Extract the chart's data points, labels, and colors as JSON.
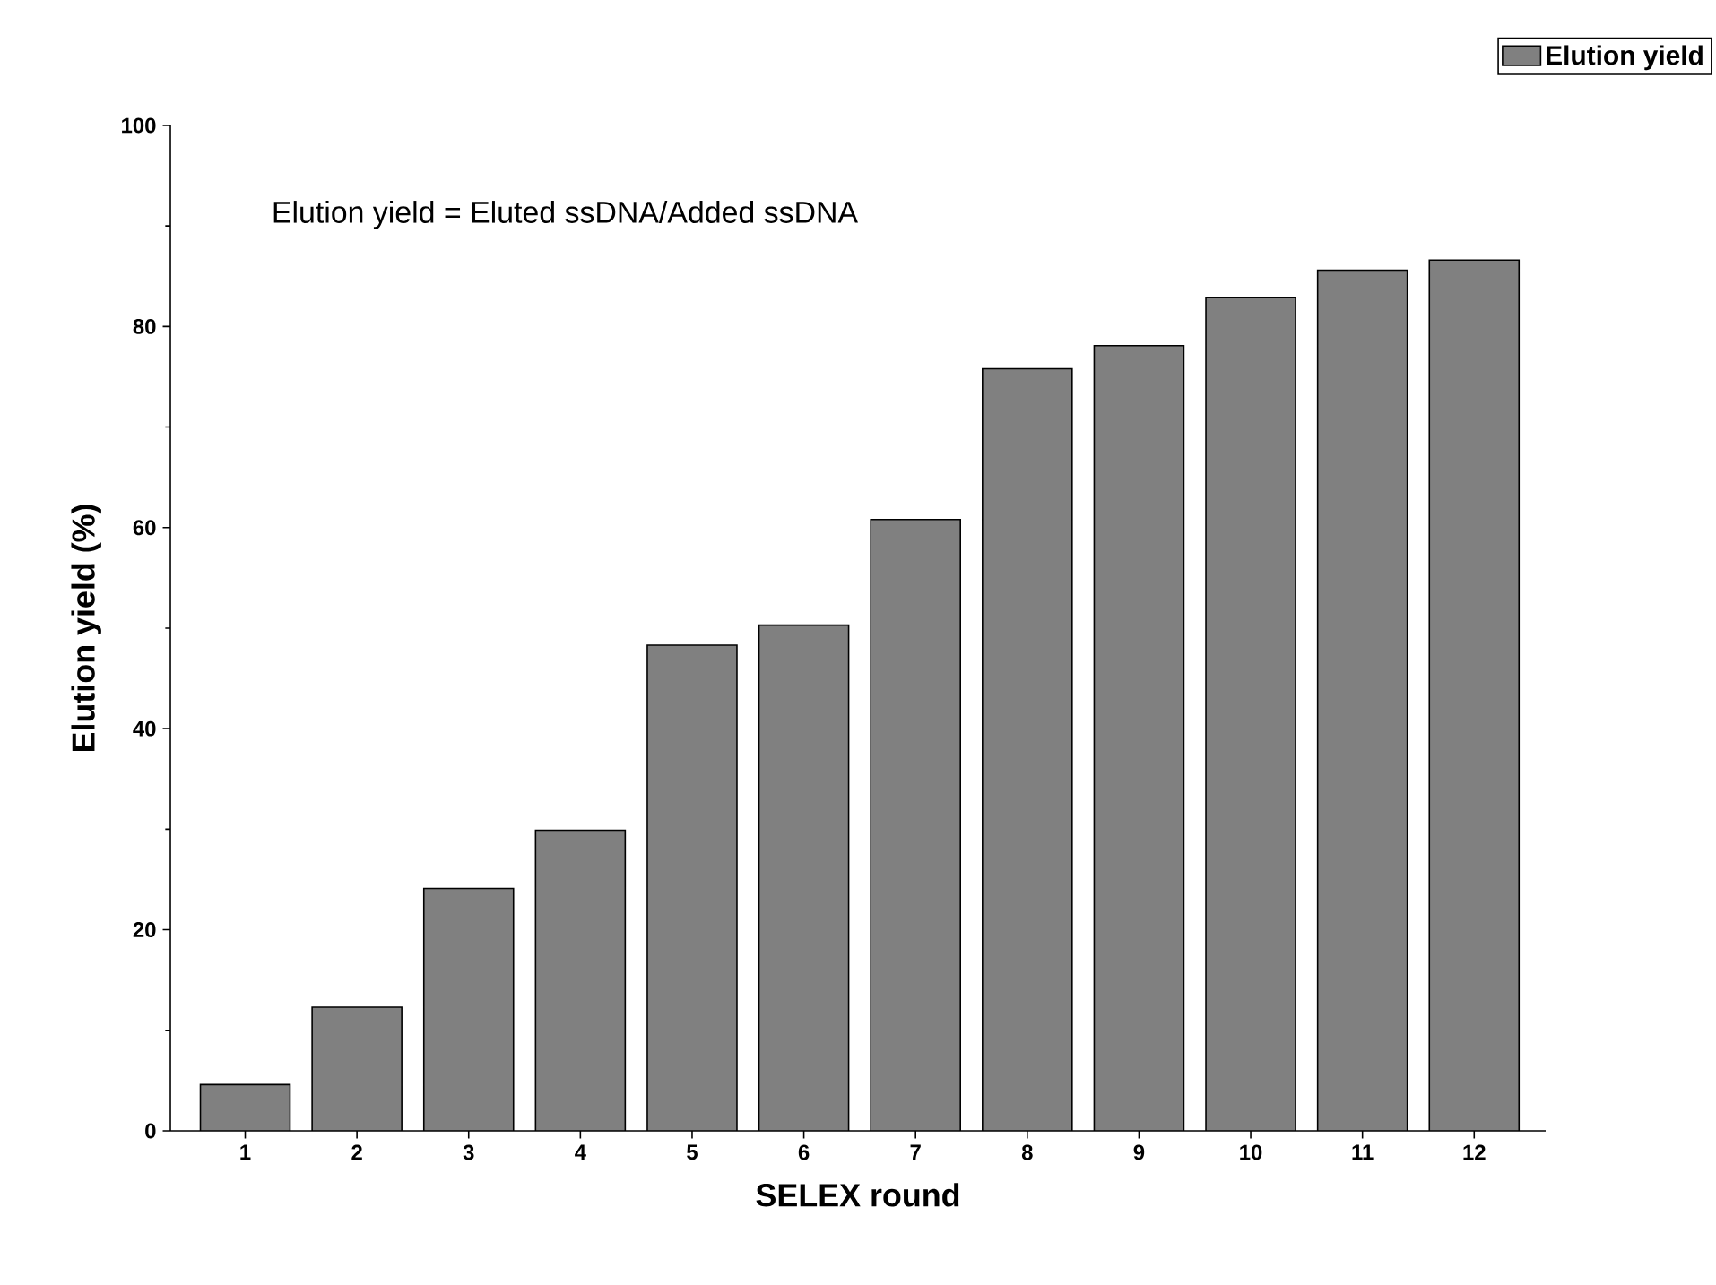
{
  "chart_data": {
    "type": "bar",
    "xlabel": "SELEX round",
    "ylabel": "Elution yield (%)",
    "categories": [
      "1",
      "2",
      "3",
      "4",
      "5",
      "6",
      "7",
      "8",
      "9",
      "10",
      "11",
      "12"
    ],
    "series": [
      {
        "name": "Elution yield",
        "color": "#808080",
        "values": [
          4.6,
          12.3,
          24.1,
          29.9,
          48.3,
          50.3,
          60.8,
          75.8,
          78.1,
          82.9,
          85.6,
          86.6
        ]
      }
    ],
    "ylim": [
      0,
      100
    ],
    "yticks": [
      0,
      20,
      40,
      60,
      80,
      100
    ],
    "annotations": [
      "Elution yield = Eluted ssDNA/Added ssDNA"
    ],
    "legend": "top right",
    "grid": false
  }
}
